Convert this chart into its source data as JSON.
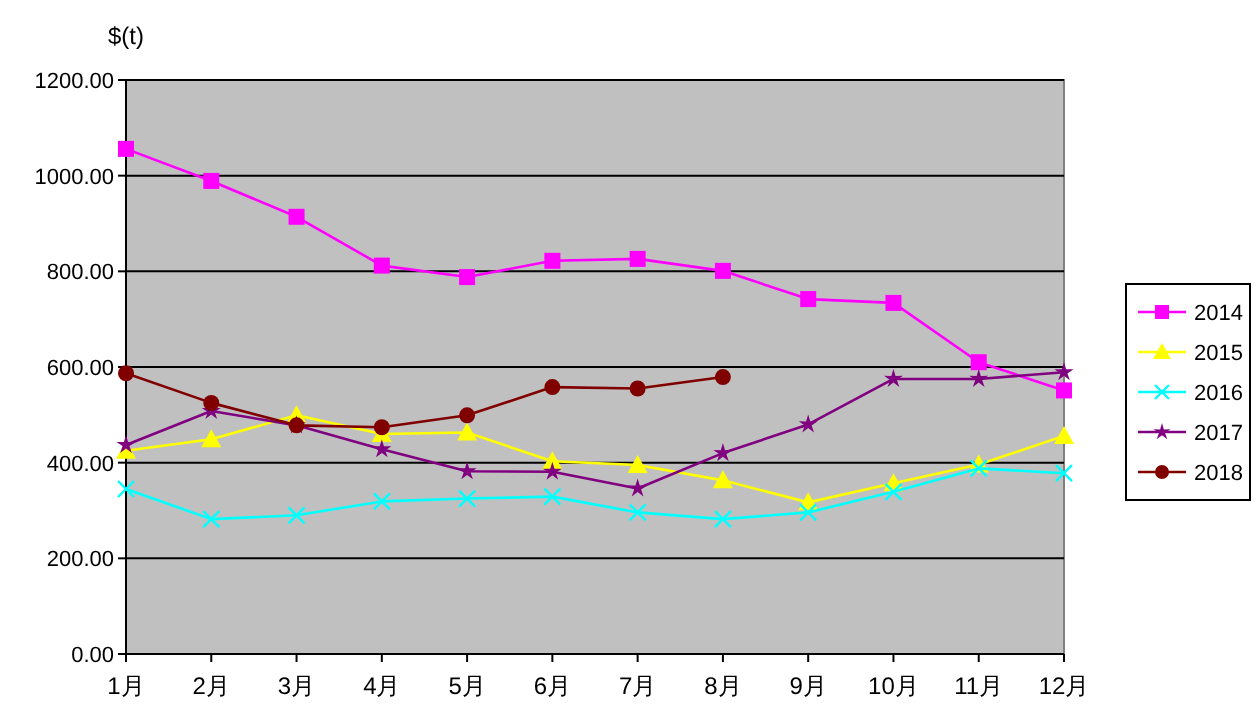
{
  "chart_data": {
    "type": "line",
    "ylabel": "$(t)",
    "categories": [
      "1月",
      "2月",
      "3月",
      "4月",
      "5月",
      "6月",
      "7月",
      "8月",
      "9月",
      "10月",
      "11月",
      "12月"
    ],
    "ylim": [
      0,
      1200
    ],
    "yticks": [
      {
        "value": 0,
        "label": "0.00"
      },
      {
        "value": 200,
        "label": "200.00"
      },
      {
        "value": 400,
        "label": "400.00"
      },
      {
        "value": 600,
        "label": "600.00"
      },
      {
        "value": 800,
        "label": "800.00"
      },
      {
        "value": 1000,
        "label": "1000.00"
      },
      {
        "value": 1200,
        "label": "1200.00"
      }
    ],
    "grid": "y",
    "legend": "right",
    "series": [
      {
        "name": "2014",
        "color": "#ff00ff",
        "marker": "square",
        "values": [
          1056,
          989,
          914,
          812,
          788,
          822,
          826,
          801,
          742,
          734,
          610,
          551
        ]
      },
      {
        "name": "2015",
        "color": "#ffff00",
        "marker": "triangle",
        "values": [
          425,
          449,
          499,
          460,
          463,
          403,
          395,
          363,
          317,
          357,
          396,
          456
        ]
      },
      {
        "name": "2016",
        "color": "#00ffff",
        "marker": "cross",
        "values": [
          345,
          282,
          290,
          319,
          325,
          329,
          296,
          282,
          296,
          339,
          388,
          378
        ]
      },
      {
        "name": "2017",
        "color": "#800080",
        "marker": "star",
        "values": [
          437,
          508,
          478,
          428,
          382,
          381,
          346,
          420,
          480,
          575,
          575,
          589
        ]
      },
      {
        "name": "2018",
        "color": "#800000",
        "marker": "circle",
        "values": [
          587,
          525,
          478,
          474,
          499,
          558,
          555,
          579,
          null,
          null,
          null,
          null
        ]
      }
    ]
  }
}
